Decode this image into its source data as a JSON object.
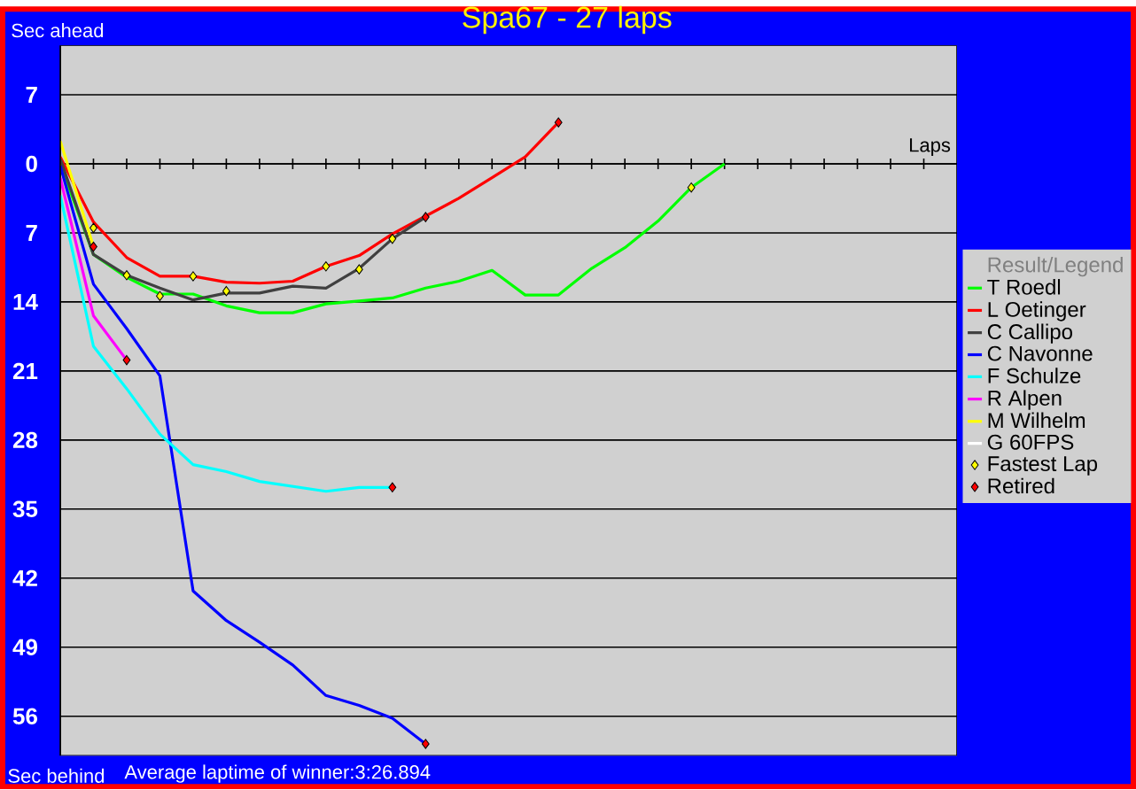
{
  "chart_data": {
    "type": "line",
    "title": "Spa67 - 27 laps",
    "xlabel": "Laps",
    "ylabel": "Sec ahead",
    "legend_title": "Result/Legend",
    "annotations": [
      "Sec behind",
      "Average laptime of winner:3:26.894"
    ],
    "categories": [
      null,
      null,
      null,
      null,
      null,
      null,
      null,
      null,
      null,
      null,
      null,
      null,
      null,
      null,
      null,
      null,
      null,
      null,
      null,
      null,
      null,
      null,
      null,
      null,
      null,
      null,
      null,
      null
    ],
    "ylim": [
      -60,
      12
    ],
    "yticks": [
      {
        "value": 7,
        "label": "7"
      },
      {
        "value": 0,
        "label": "0"
      },
      {
        "value": -7,
        "label": "7"
      },
      {
        "value": -14,
        "label": "14"
      },
      {
        "value": -21,
        "label": "21"
      },
      {
        "value": -28,
        "label": "28"
      },
      {
        "value": -35,
        "label": "35"
      },
      {
        "value": -42,
        "label": "42"
      },
      {
        "value": -49,
        "label": "49"
      },
      {
        "value": -56,
        "label": "56"
      }
    ],
    "tick_labels": "y",
    "grid": "y",
    "legend": "right",
    "series": [
      {
        "name": "T Roedl",
        "color": "#00ff00",
        "values": [
          0,
          -9.2,
          -11.5,
          -13.2,
          -13.2,
          -14.4,
          -15.1,
          -15.1,
          -14.2,
          -13.9,
          -13.6,
          -12.6,
          -11.9,
          -10.8,
          -13.3,
          -13.3,
          -10.6,
          -8.5,
          -5.8,
          -2.4,
          0,
          null,
          null,
          null,
          null,
          null,
          null,
          null
        ]
      },
      {
        "name": "L Oetinger",
        "color": "#ff0000",
        "values": [
          0.7,
          -5.9,
          -9.5,
          -11.4,
          -11.4,
          -12.0,
          -12.1,
          -11.9,
          -10.4,
          -9.3,
          -7.1,
          -5.3,
          -3.5,
          -1.4,
          0.7,
          4.2,
          null,
          null,
          null,
          null,
          null,
          null,
          null,
          null,
          null,
          null,
          null,
          null
        ]
      },
      {
        "name": "C Callipo",
        "color": "#404040",
        "values": [
          0.5,
          -9.2,
          -11.3,
          -12.6,
          -13.8,
          -13.1,
          -13.1,
          -12.4,
          -12.6,
          -10.6,
          -7.6,
          -5.4,
          null,
          null,
          null,
          null,
          null,
          null,
          null,
          null,
          null,
          null,
          null,
          null,
          null,
          null,
          null,
          null
        ]
      },
      {
        "name": "C Navonne",
        "color": "#0000ff",
        "values": [
          -0.2,
          -12.2,
          -16.7,
          -21.5,
          -43.3,
          -46.3,
          -48.5,
          -50.8,
          -53.9,
          -54.9,
          -56.2,
          -58.8,
          null,
          null,
          null,
          null,
          null,
          null,
          null,
          null,
          null,
          null,
          null,
          null,
          null,
          null,
          null,
          null
        ]
      },
      {
        "name": "F Schulze",
        "color": "#00ffff",
        "values": [
          -3.2,
          -18.5,
          -22.8,
          -27.4,
          -30.5,
          -31.2,
          -32.2,
          -32.7,
          -33.2,
          -32.8,
          -32.8,
          null,
          null,
          null,
          null,
          null,
          null,
          null,
          null,
          null,
          null,
          null,
          null,
          null,
          null,
          null,
          null,
          null
        ]
      },
      {
        "name": "R Alpen",
        "color": "#ff00ff",
        "values": [
          -1.4,
          -15.4,
          -19.9,
          null,
          null,
          null,
          null,
          null,
          null,
          null,
          null,
          null,
          null,
          null,
          null,
          null,
          null,
          null,
          null,
          null,
          null,
          null,
          null,
          null,
          null,
          null,
          null,
          null
        ]
      },
      {
        "name": "M Wilhelm",
        "color": "#ffff00",
        "values": [
          2.3,
          -8.4,
          null,
          null,
          null,
          null,
          null,
          null,
          null,
          null,
          null,
          null,
          null,
          null,
          null,
          null,
          null,
          null,
          null,
          null,
          null,
          null,
          null,
          null,
          null,
          null,
          null,
          null
        ]
      },
      {
        "name": "G 60FPS",
        "color": "#ffffff",
        "values": [
          null,
          null,
          null,
          null,
          null,
          null,
          null,
          null,
          null,
          null,
          null,
          null,
          null,
          null,
          null,
          null,
          null,
          null,
          null,
          null,
          null,
          null,
          null,
          null,
          null,
          null,
          null,
          null
        ]
      },
      {
        "name": "Fastest Lap",
        "type": "scatter",
        "marker": "diamond",
        "color": "#ffff00",
        "values": [
          null,
          -6.5,
          -11.3,
          -13.4,
          -11.4,
          -12.9,
          null,
          null,
          -10.4,
          -10.7,
          -7.6,
          null,
          null,
          null,
          null,
          null,
          null,
          null,
          null,
          -2.4,
          null,
          null,
          null,
          null,
          null,
          null,
          null,
          null
        ]
      },
      {
        "name": "Retired",
        "type": "scatter",
        "marker": "diamond",
        "color": "#ff0000",
        "values": [
          null,
          -8.4,
          -19.9,
          null,
          null,
          null,
          null,
          null,
          null,
          null,
          -32.8,
          -5.4,
          null,
          null,
          null,
          4.2,
          null,
          null,
          null,
          null,
          null,
          null,
          null,
          null,
          null,
          null,
          null,
          null
        ]
      },
      {
        "type": "scatter",
        "marker": "diamond",
        "color": "#ff0000",
        "values": [
          null,
          null,
          null,
          null,
          null,
          null,
          null,
          null,
          null,
          null,
          null,
          -58.8,
          null,
          null,
          null,
          null,
          null,
          null,
          null,
          null,
          null,
          null,
          null,
          null,
          null,
          null,
          null,
          null
        ]
      }
    ]
  }
}
